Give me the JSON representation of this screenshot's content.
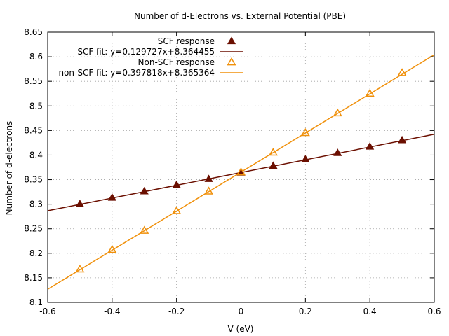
{
  "chart_data": {
    "type": "line",
    "title": "Number of d-Electrons vs. External Potential (PBE)",
    "xlabel": "V (eV)",
    "ylabel": "Number of d-electrons",
    "xlim": [
      -0.6,
      0.6
    ],
    "ylim": [
      8.1,
      8.65
    ],
    "xticks": [
      -0.6,
      -0.4,
      -0.2,
      0,
      0.2,
      0.4,
      0.6
    ],
    "xtick_labels": [
      "-0.6",
      "-0.4",
      "-0.2",
      "0",
      "0.2",
      "0.4",
      "0.6"
    ],
    "yticks": [
      8.1,
      8.15,
      8.2,
      8.25,
      8.3,
      8.35,
      8.4,
      8.45,
      8.5,
      8.55,
      8.6,
      8.65
    ],
    "ytick_labels": [
      "8.1",
      "8.15",
      "8.2",
      "8.25",
      "8.3",
      "8.35",
      "8.4",
      "8.45",
      "8.5",
      "8.55",
      "8.6",
      "8.65"
    ],
    "grid": true,
    "legend_position": "top-left",
    "series": [
      {
        "name": "SCF response",
        "kind": "points",
        "marker": "filled-triangle",
        "color": "#6b0f00",
        "x": [
          -0.5,
          -0.4,
          -0.3,
          -0.2,
          -0.1,
          0.0,
          0.1,
          0.2,
          0.3,
          0.4,
          0.5
        ],
        "y": [
          8.3,
          8.313,
          8.326,
          8.339,
          8.351,
          8.364,
          8.378,
          8.391,
          8.404,
          8.417,
          8.43
        ]
      },
      {
        "name": "SCF fit: y=0.129727x+8.364455",
        "kind": "fit",
        "color": "#6b0f00",
        "slope": 0.129727,
        "intercept": 8.364455
      },
      {
        "name": "Non-SCF response",
        "kind": "points",
        "marker": "open-triangle",
        "color": "#f0900a",
        "x": [
          -0.5,
          -0.4,
          -0.3,
          -0.2,
          -0.1,
          0.0,
          0.1,
          0.2,
          0.3,
          0.4,
          0.5
        ],
        "y": [
          8.167,
          8.207,
          8.246,
          8.286,
          8.326,
          8.365,
          8.405,
          8.445,
          8.485,
          8.525,
          8.567
        ]
      },
      {
        "name": "non-SCF fit: y=0.397818x+8.365364",
        "kind": "fit",
        "color": "#f0900a",
        "slope": 0.397818,
        "intercept": 8.365364
      }
    ]
  }
}
